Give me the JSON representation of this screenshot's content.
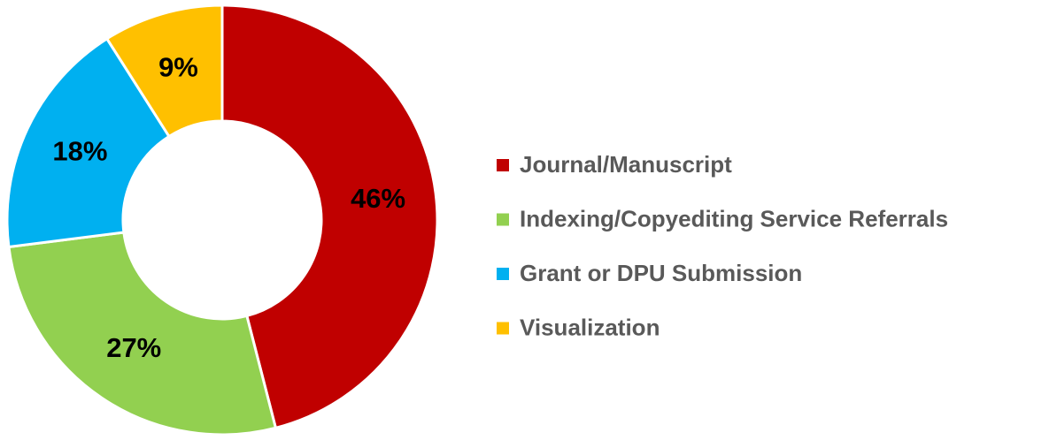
{
  "chart_data": {
    "type": "donut",
    "categories": [
      "Journal/Manuscript",
      "Indexing/Copyediting Service Referrals",
      "Grant or DPU Submission",
      "Visualization"
    ],
    "values": [
      46,
      27,
      18,
      9
    ],
    "value_labels": [
      "46%",
      "27%",
      "18%",
      "9%"
    ],
    "colors": [
      "#c00000",
      "#92d050",
      "#00b0f0",
      "#ffc000"
    ],
    "legend": "right"
  }
}
